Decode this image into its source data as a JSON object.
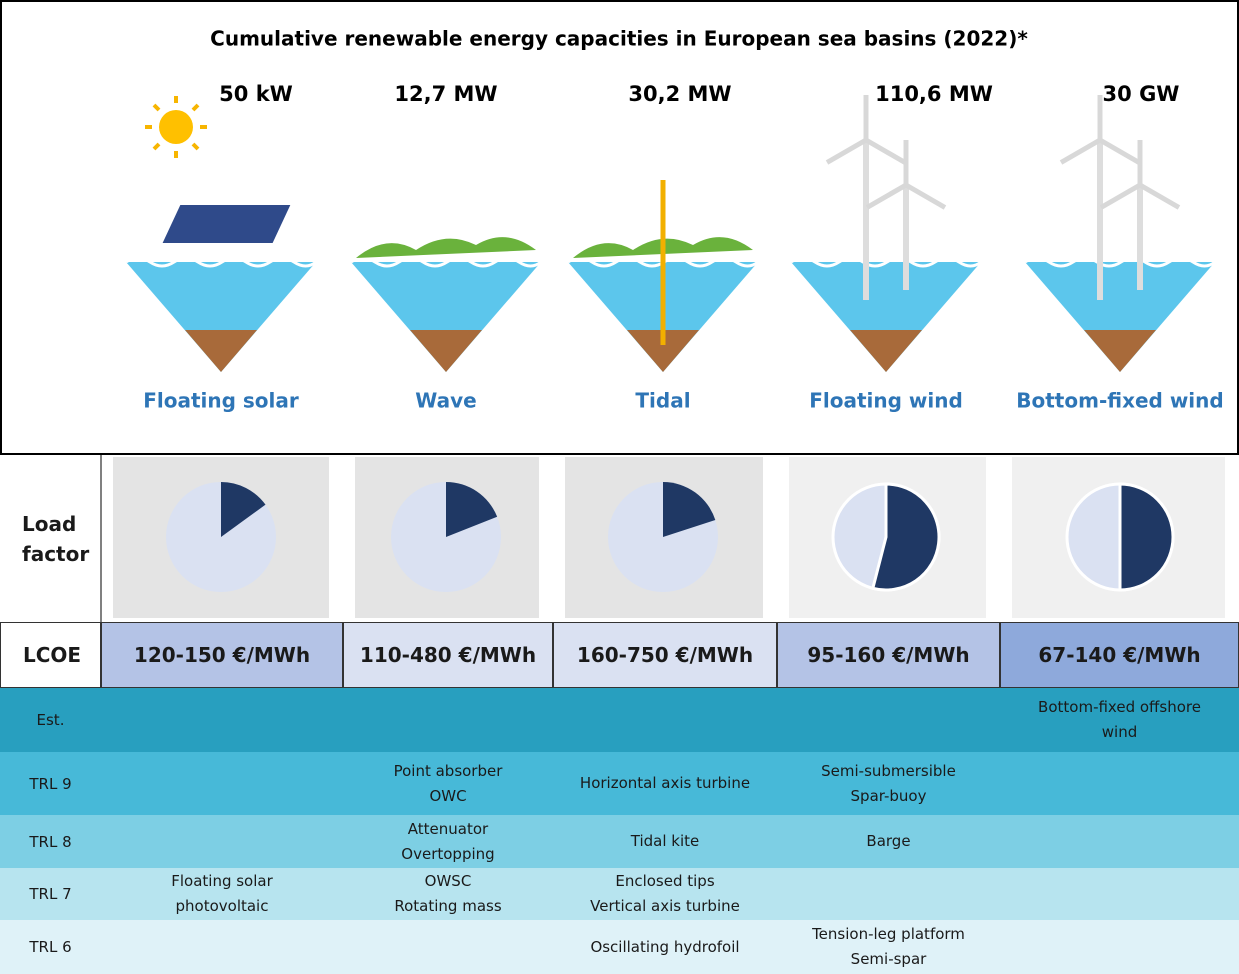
{
  "title": "Cumulative renewable energy capacities in European sea basins (2022)*",
  "technologies": [
    {
      "name": "Floating solar",
      "capacity": "50 kW",
      "load_factor": 15,
      "lcoe": "120-150 €/MWh"
    },
    {
      "name": "Wave",
      "capacity": "12,7 MW",
      "load_factor": 19,
      "lcoe": "110-480 €/MWh"
    },
    {
      "name": "Tidal",
      "capacity": "30,2 MW",
      "load_factor": 20,
      "lcoe": "160-750 €/MWh"
    },
    {
      "name": "Floating wind",
      "capacity": "110,6 MW",
      "load_factor": 54,
      "lcoe": "95-160 €/MWh"
    },
    {
      "name": "Bottom-fixed wind",
      "capacity": "30 GW",
      "load_factor": 50,
      "lcoe": "67-140 €/MWh"
    }
  ],
  "load_factor_label": "Load factor",
  "lcoe_label": "LCOE",
  "trl_rows": [
    {
      "label": "Est.",
      "cells": [
        [],
        [],
        [],
        [],
        [
          "Bottom-fixed offshore wind"
        ]
      ]
    },
    {
      "label": "TRL 9",
      "cells": [
        [],
        [
          "Point absorber",
          "OWC"
        ],
        [
          "Horizontal axis turbine"
        ],
        [
          "Semi-submersible",
          "Spar-buoy"
        ],
        []
      ]
    },
    {
      "label": "TRL 8",
      "cells": [
        [],
        [
          "Attenuator",
          "Overtopping"
        ],
        [
          "Tidal kite"
        ],
        [
          "Barge"
        ],
        []
      ]
    },
    {
      "label": "TRL 7",
      "cells": [
        [
          "Floating solar photovoltaic"
        ],
        [
          "OWSC",
          "Rotating mass"
        ],
        [
          "Enclosed tips",
          "Vertical axis turbine"
        ],
        [],
        []
      ]
    },
    {
      "label": "TRL 6",
      "cells": [
        [],
        [],
        [
          "Oscillating hydrofoil"
        ],
        [
          "Tension-leg platform",
          "Semi-spar"
        ],
        []
      ]
    }
  ]
}
